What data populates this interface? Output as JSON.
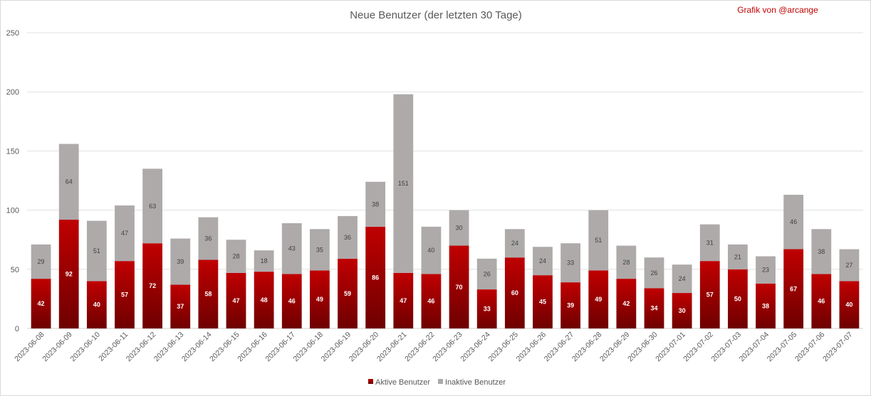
{
  "colors": {
    "active_top": "#c00000",
    "active_bottom": "#6e0000",
    "inactive": "#aeaaaa",
    "credit": "#c00000"
  },
  "chart_data": {
    "type": "bar",
    "stacked": true,
    "title": "Neue Benutzer (der letzten 30 Tage)",
    "credit": "Grafik von @arcange",
    "ylim": [
      0,
      250
    ],
    "yticks": [
      0,
      50,
      100,
      150,
      200,
      250
    ],
    "grid": true,
    "legend_position": "bottom",
    "categories": [
      "2023-06-08",
      "2023-06-09",
      "2023-06-10",
      "2023-06-11",
      "2023-06-12",
      "2023-06-13",
      "2023-06-14",
      "2023-06-15",
      "2023-06-16",
      "2023-06-17",
      "2023-06-18",
      "2023-06-19",
      "2023-06-20",
      "2023-06-21",
      "2023-06-22",
      "2023-06-23",
      "2023-06-24",
      "2023-06-25",
      "2023-06-26",
      "2023-06-27",
      "2023-06-28",
      "2023-06-29",
      "2023-06-30",
      "2023-07-01",
      "2023-07-02",
      "2023-07-03",
      "2023-07-04",
      "2023-07-05",
      "2023-07-06",
      "2023-07-07"
    ],
    "series": [
      {
        "name": "Aktive Benutzer",
        "values": [
          42,
          92,
          40,
          57,
          72,
          37,
          58,
          47,
          48,
          46,
          49,
          59,
          86,
          47,
          46,
          70,
          33,
          60,
          45,
          39,
          49,
          42,
          34,
          30,
          57,
          50,
          38,
          67,
          46,
          40
        ]
      },
      {
        "name": "Inaktive Benutzer",
        "values": [
          29,
          64,
          51,
          47,
          63,
          39,
          36,
          28,
          18,
          43,
          35,
          36,
          38,
          151,
          40,
          30,
          26,
          24,
          24,
          33,
          51,
          28,
          26,
          24,
          31,
          21,
          23,
          46,
          38,
          27
        ]
      }
    ]
  }
}
